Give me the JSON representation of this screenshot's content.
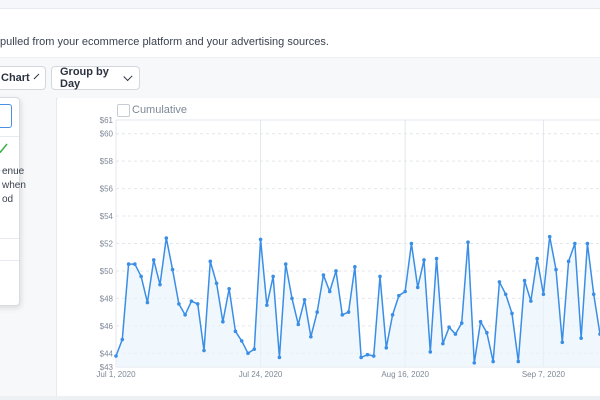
{
  "description": "pulled from your ecommerce platform and your advertising sources.",
  "toolbar": {
    "chart_label": "Chart",
    "group_label": "Group by Day"
  },
  "side_panel": {
    "lines": [
      "enue",
      "when",
      "od"
    ]
  },
  "cumulative_label": "Cumulative",
  "colors": {
    "series": "#3a8ee6",
    "grid": "#e3e7ec",
    "check": "#3cb44b"
  },
  "chart_data": {
    "type": "line",
    "title": "",
    "xlabel": "",
    "ylabel": "",
    "ylim": [
      43,
      61
    ],
    "y_ticks": [
      "$43",
      "$44",
      "$46",
      "$48",
      "$50",
      "$52",
      "$54",
      "$56",
      "$58",
      "$60",
      "$61"
    ],
    "x_ticks": [
      "Jul 1, 2020",
      "Jul 24, 2020",
      "Aug 16, 2020",
      "Sep 7, 2020"
    ],
    "x_tick_index": [
      0,
      23,
      46,
      68
    ],
    "grid": true,
    "series": [
      {
        "values": [
          43.8,
          45.0,
          50.5,
          50.5,
          49.6,
          47.7,
          50.8,
          49.0,
          52.4,
          50.1,
          47.6,
          46.8,
          47.8,
          47.6,
          44.2,
          50.7,
          49.1,
          46.3,
          48.7,
          45.6,
          44.9,
          44.0,
          44.3,
          52.3,
          47.5,
          49.6,
          43.7,
          50.5,
          48.0,
          46.1,
          47.9,
          45.2,
          47.0,
          49.7,
          48.5,
          50.0,
          46.8,
          47.0,
          50.3,
          43.7,
          43.9,
          43.8,
          49.6,
          44.4,
          46.8,
          48.2,
          48.5,
          52.0,
          48.8,
          50.8,
          44.1,
          50.9,
          44.7,
          45.9,
          45.4,
          46.2,
          52.1,
          43.3,
          46.3,
          45.5,
          43.4,
          49.2,
          48.3,
          46.9,
          43.4,
          49.3,
          47.8,
          50.9,
          48.3,
          52.5,
          50.1,
          44.8,
          50.7,
          52.0,
          45.1,
          52.0,
          48.3,
          45.4
        ]
      }
    ]
  }
}
